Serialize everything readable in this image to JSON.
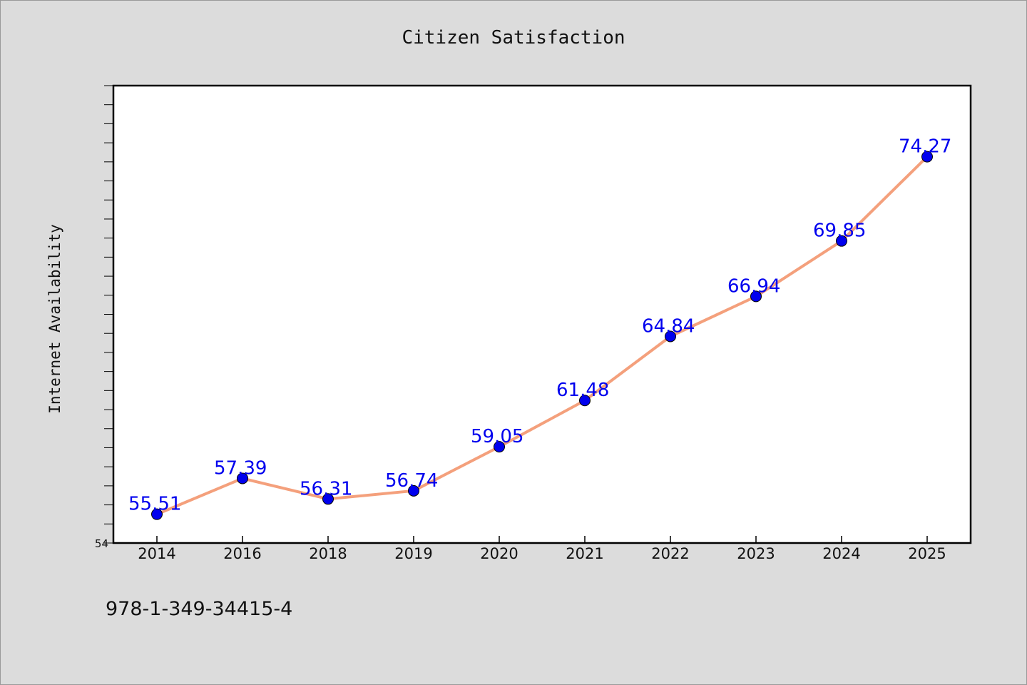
{
  "chart_data": {
    "type": "line",
    "title": "Citizen Satisfaction",
    "xlabel": "",
    "ylabel": "Internet Availability",
    "categories": [
      "2014",
      "2016",
      "2018",
      "2019",
      "2020",
      "2021",
      "2022",
      "2023",
      "2024",
      "2025"
    ],
    "series": [
      {
        "values": [
          55.51,
          57.39,
          56.31,
          56.74,
          59.05,
          61.48,
          64.84,
          66.94,
          69.85,
          74.27
        ],
        "value_labels": [
          "55.51",
          "57.39",
          "56.31",
          "56.74",
          "59.05",
          "61.48",
          "64.84",
          "66.94",
          "69.85",
          "74.27"
        ],
        "line_color": "#f4a07c",
        "marker_color": "#0000ee"
      }
    ],
    "ylim": [
      54,
      78
    ],
    "ytick_labels": [
      "54"
    ],
    "minor_ytick_step": 1,
    "grid": false,
    "legend": "none"
  },
  "footer": {
    "isbn": "978-1-349-34415-4"
  },
  "colors": {
    "background": "#dcdcdc",
    "plot_background": "#ffffff",
    "line": "#f4a07c",
    "marker": "#0000ee",
    "label": "#0000ee"
  }
}
